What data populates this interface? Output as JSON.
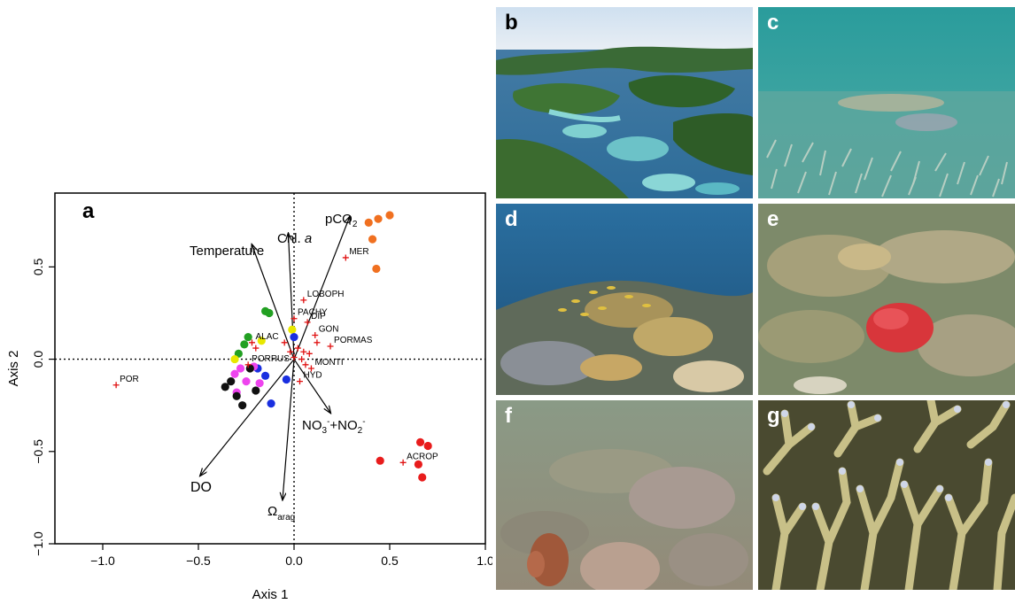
{
  "figure": {
    "panel_labels": [
      "a",
      "b",
      "c",
      "d",
      "e",
      "f",
      "g"
    ]
  },
  "chart_data": {
    "type": "scatter",
    "panel_label": "a",
    "xlabel": "Axis 1",
    "ylabel": "Axis 2",
    "xlim": [
      -1.25,
      1.0
    ],
    "ylim": [
      -1.0,
      0.9
    ],
    "xticks": [
      "−1.0",
      "−0.5",
      "0.0",
      "0.5",
      "1.0"
    ],
    "xtick_values": [
      -1.0,
      -0.5,
      0.0,
      0.5,
      1.0
    ],
    "yticks": [
      "−1.0",
      "−0.5",
      "0.0",
      "0.5"
    ],
    "ytick_values": [
      -1.0,
      -0.5,
      0.0,
      0.5
    ],
    "zero_lines": "dotted",
    "vectors": [
      {
        "label": "Temperature",
        "x": -0.22,
        "y": 0.62
      },
      {
        "label": "Chl. a",
        "x": -0.03,
        "y": 0.68
      },
      {
        "label": "pCO2",
        "x": 0.29,
        "y": 0.77
      },
      {
        "label": "NO3-+NO2-",
        "x": 0.19,
        "y": -0.29
      },
      {
        "label": "DO",
        "x": -0.49,
        "y": -0.63
      },
      {
        "label": "Ωarag",
        "x": -0.06,
        "y": -0.76
      }
    ],
    "vector_text": {
      "temperature": "Temperature",
      "chl_main": "Chl. ",
      "chl_italic": "a",
      "pco2_main": "pCO",
      "pco2_sub": "2",
      "nox_a": "NO",
      "nox_b": "3",
      "nox_c": "-",
      "nox_d": "+NO",
      "nox_e": "2",
      "nox_f": "-",
      "do": "DO",
      "omega_main": "Ω",
      "omega_sub": "arag"
    },
    "genus_scores": [
      {
        "label": "POR",
        "x": -0.93,
        "y": -0.14
      },
      {
        "label": "MER",
        "x": 0.27,
        "y": 0.55
      },
      {
        "label": "LOBOPH",
        "x": 0.05,
        "y": 0.32
      },
      {
        "label": "PACHY",
        "x": 0.0,
        "y": 0.22
      },
      {
        "label": "DIP",
        "x": 0.07,
        "y": 0.2
      },
      {
        "label": "GON",
        "x": 0.11,
        "y": 0.13
      },
      {
        "label": "PORMAS",
        "x": 0.19,
        "y": 0.07
      },
      {
        "label": "ALAC",
        "x": -0.22,
        "y": 0.09
      },
      {
        "label": "MONTI",
        "x": 0.09,
        "y": -0.05
      },
      {
        "label": "PORRUS",
        "x": -0.24,
        "y": -0.03
      },
      {
        "label": "HYD",
        "x": 0.03,
        "y": -0.12
      },
      {
        "label": "ACROP",
        "x": 0.57,
        "y": -0.56
      },
      {
        "label": "",
        "x": -0.02,
        "y": 0.04
      },
      {
        "label": "",
        "x": 0.02,
        "y": 0.06
      },
      {
        "label": "",
        "x": 0.05,
        "y": 0.04
      },
      {
        "label": "",
        "x": 0.0,
        "y": 0.01
      },
      {
        "label": "",
        "x": -0.05,
        "y": 0.09
      },
      {
        "label": "",
        "x": -0.2,
        "y": 0.06
      },
      {
        "label": "",
        "x": 0.04,
        "y": 0.0
      },
      {
        "label": "",
        "x": 0.06,
        "y": -0.03
      },
      {
        "label": "",
        "x": 0.12,
        "y": 0.09
      },
      {
        "label": "",
        "x": 0.08,
        "y": 0.03
      }
    ],
    "site_groups": [
      {
        "color": "#f07020",
        "points": [
          [
            0.39,
            0.74
          ],
          [
            0.44,
            0.76
          ],
          [
            0.5,
            0.78
          ],
          [
            0.41,
            0.65
          ],
          [
            0.43,
            0.49
          ]
        ]
      },
      {
        "color": "#e81c1c",
        "points": [
          [
            0.66,
            -0.45
          ],
          [
            0.7,
            -0.47
          ],
          [
            0.45,
            -0.55
          ],
          [
            0.65,
            -0.57
          ],
          [
            0.67,
            -0.64
          ]
        ]
      },
      {
        "color": "#22a022",
        "points": [
          [
            -0.15,
            0.26
          ],
          [
            -0.13,
            0.25
          ],
          [
            -0.24,
            0.12
          ],
          [
            -0.26,
            0.08
          ],
          [
            -0.29,
            0.03
          ]
        ]
      },
      {
        "color": "#e8e800",
        "points": [
          [
            -0.17,
            0.1
          ],
          [
            -0.31,
            0.0
          ],
          [
            -0.01,
            0.16
          ]
        ]
      },
      {
        "color": "#1a2fe0",
        "points": [
          [
            0.0,
            0.12
          ],
          [
            -0.19,
            -0.05
          ],
          [
            -0.04,
            -0.11
          ],
          [
            -0.12,
            -0.24
          ],
          [
            -0.15,
            -0.09
          ]
        ]
      },
      {
        "color": "#ee44ee",
        "points": [
          [
            -0.28,
            -0.05
          ],
          [
            -0.21,
            -0.04
          ],
          [
            -0.31,
            -0.08
          ],
          [
            -0.18,
            -0.13
          ],
          [
            -0.3,
            -0.18
          ],
          [
            -0.25,
            -0.12
          ]
        ]
      },
      {
        "color": "#111111",
        "points": [
          [
            -0.36,
            -0.15
          ],
          [
            -0.23,
            -0.05
          ],
          [
            -0.3,
            -0.2
          ],
          [
            -0.2,
            -0.17
          ],
          [
            -0.27,
            -0.25
          ],
          [
            -0.33,
            -0.12
          ]
        ]
      }
    ]
  }
}
